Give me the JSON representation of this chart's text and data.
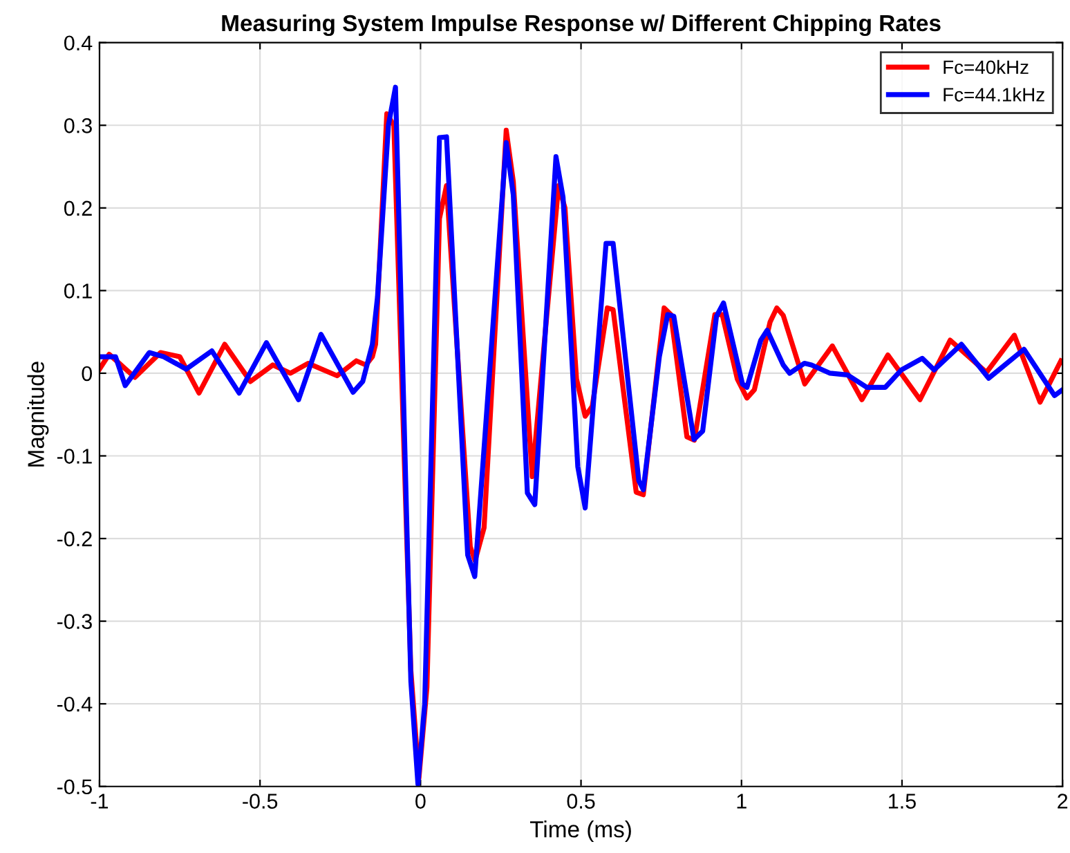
{
  "chart_data": {
    "type": "line",
    "title": "Measuring System Impulse Response w/ Different Chipping Rates",
    "xlabel": "Time (ms)",
    "ylabel": "Magnitude",
    "xlim": [
      -1,
      2
    ],
    "xticks": [
      -1,
      -0.5,
      0,
      0.5,
      1,
      1.5,
      2
    ],
    "ylim": [
      -0.5,
      0.4
    ],
    "yticks": [
      -0.5,
      -0.4,
      -0.3,
      -0.2,
      -0.1,
      0,
      0.1,
      0.2,
      0.3,
      0.4
    ],
    "grid": true,
    "legend": "top right",
    "marker": "none",
    "line_style": "solid",
    "series": [
      {
        "name": "Fc=40kHz",
        "color": "#ff0000",
        "x": [
          -1.0,
          -0.97,
          -0.89,
          -0.81,
          -0.75,
          -0.69,
          -0.61,
          -0.53,
          -0.46,
          -0.405,
          -0.35,
          -0.26,
          -0.2,
          -0.17,
          -0.15,
          -0.14,
          -0.105,
          -0.083,
          -0.03,
          -0.005,
          0.02,
          0.059,
          0.081,
          0.155,
          0.17,
          0.198,
          0.267,
          0.289,
          0.348,
          0.43,
          0.45,
          0.486,
          0.513,
          0.535,
          0.582,
          0.6,
          0.672,
          0.694,
          0.759,
          0.78,
          0.83,
          0.853,
          0.917,
          0.94,
          0.987,
          1.017,
          1.04,
          1.089,
          1.11,
          1.13,
          1.197,
          1.283,
          1.375,
          1.456,
          1.556,
          1.65,
          1.763,
          1.85,
          1.93,
          1.995
        ],
        "values": [
          0.005,
          0.023,
          -0.005,
          0.025,
          0.02,
          -0.024,
          0.035,
          -0.01,
          0.01,
          0.0,
          0.012,
          -0.003,
          0.015,
          0.01,
          0.02,
          0.035,
          0.314,
          0.3,
          -0.36,
          -0.49,
          -0.38,
          0.187,
          0.227,
          -0.21,
          -0.227,
          -0.187,
          0.294,
          0.232,
          -0.125,
          0.227,
          0.2,
          -0.007,
          -0.052,
          -0.04,
          0.079,
          0.077,
          -0.144,
          -0.147,
          0.079,
          0.071,
          -0.077,
          -0.081,
          0.071,
          0.071,
          -0.007,
          -0.03,
          -0.02,
          0.062,
          0.079,
          0.07,
          -0.013,
          0.033,
          -0.032,
          0.022,
          -0.032,
          0.04,
          0.001,
          0.046,
          -0.035,
          0.015
        ]
      },
      {
        "name": "Fc=44.1kHz",
        "color": "#0000ff",
        "x": [
          -1.0,
          -0.95,
          -0.92,
          -0.845,
          -0.8,
          -0.73,
          -0.65,
          -0.565,
          -0.48,
          -0.38,
          -0.31,
          -0.21,
          -0.18,
          -0.15,
          -0.134,
          -0.1,
          -0.078,
          -0.03,
          -0.008,
          0.013,
          0.059,
          0.081,
          0.147,
          0.169,
          0.267,
          0.289,
          0.333,
          0.356,
          0.422,
          0.444,
          0.49,
          0.513,
          0.578,
          0.6,
          0.68,
          0.694,
          0.744,
          0.77,
          0.789,
          0.852,
          0.879,
          0.922,
          0.944,
          1.003,
          1.017,
          1.06,
          1.08,
          1.13,
          1.15,
          1.196,
          1.218,
          1.276,
          1.33,
          1.39,
          1.448,
          1.498,
          1.563,
          1.6,
          1.685,
          1.77,
          1.88,
          1.975,
          2.0
        ],
        "values": [
          0.02,
          0.02,
          -0.015,
          0.025,
          0.02,
          0.005,
          0.027,
          -0.024,
          0.037,
          -0.032,
          0.047,
          -0.023,
          -0.01,
          0.035,
          0.092,
          0.3,
          0.346,
          -0.373,
          -0.497,
          -0.4,
          0.285,
          0.286,
          -0.22,
          -0.246,
          0.279,
          0.216,
          -0.145,
          -0.159,
          0.262,
          0.213,
          -0.113,
          -0.163,
          0.157,
          0.157,
          -0.13,
          -0.141,
          0.02,
          0.071,
          0.069,
          -0.08,
          -0.07,
          0.069,
          0.085,
          -0.013,
          -0.017,
          0.04,
          0.052,
          0.01,
          0.0,
          0.012,
          0.01,
          0.0,
          -0.002,
          -0.017,
          -0.017,
          0.004,
          0.018,
          0.004,
          0.035,
          -0.006,
          0.029,
          -0.027,
          -0.02
        ]
      }
    ]
  }
}
